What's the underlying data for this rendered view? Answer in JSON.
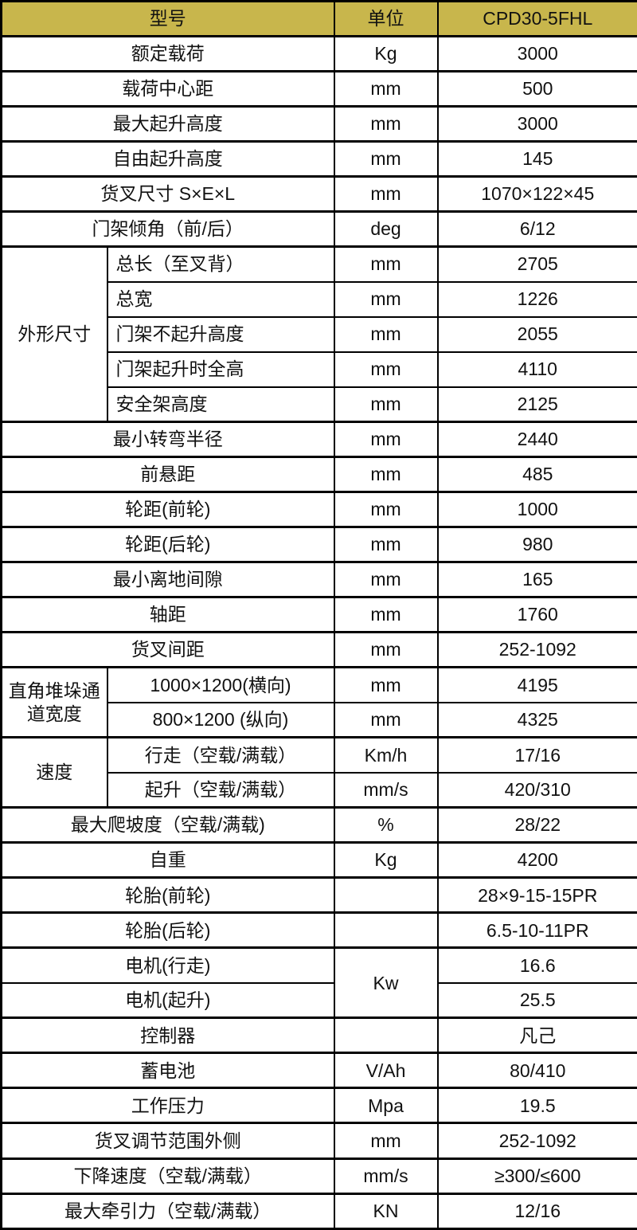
{
  "table": {
    "colors": {
      "header_bg": "#c8b64c",
      "border": "#000000",
      "text": "#111111"
    },
    "header": {
      "model": "型号",
      "unit": "单位",
      "value": "CPD30-5FHL"
    },
    "rows": [
      {
        "label": "额定载荷",
        "unit": "Kg",
        "value": "3000"
      },
      {
        "label": "载荷中心距",
        "unit": "mm",
        "value": "500"
      },
      {
        "label": "最大起升高度",
        "unit": "mm",
        "value": "3000"
      },
      {
        "label": "自由起升高度",
        "unit": "mm",
        "value": "145"
      },
      {
        "label": "货叉尺寸 S×E×L",
        "unit": "mm",
        "value": "1070×122×45"
      },
      {
        "label": "门架倾角（前/后）",
        "unit": "deg",
        "value": "6/12"
      },
      {
        "group": {
          "text": "外形尺寸",
          "rowspan": 5
        },
        "label": "总长（至叉背）",
        "label_align": "left",
        "unit": "mm",
        "value": "2705"
      },
      {
        "label": "总宽",
        "label_align": "left",
        "unit": "mm",
        "value": "1226",
        "minor": true
      },
      {
        "label": "门架不起升高度",
        "label_align": "left",
        "unit": "mm",
        "value": "2055",
        "minor": true
      },
      {
        "label": "门架起升时全高",
        "label_align": "left",
        "unit": "mm",
        "value": "4110",
        "minor": true
      },
      {
        "label": "安全架高度",
        "label_align": "left",
        "unit": "mm",
        "value": "2125",
        "minor": true
      },
      {
        "label": "最小转弯半径",
        "unit": "mm",
        "value": "2440"
      },
      {
        "label": "前悬距",
        "unit": "mm",
        "value": "485"
      },
      {
        "label": "轮距(前轮)",
        "unit": "mm",
        "value": "1000"
      },
      {
        "label": "轮距(后轮)",
        "unit": "mm",
        "value": "980"
      },
      {
        "label": "最小离地间隙",
        "unit": "mm",
        "value": "165"
      },
      {
        "label": "轴距",
        "unit": "mm",
        "value": "1760"
      },
      {
        "label": "货叉间距",
        "unit": "mm",
        "value": "252-1092"
      },
      {
        "group": {
          "text": "直角堆垛通道宽度",
          "rowspan": 2
        },
        "label": "1000×1200(横向)",
        "unit": "mm",
        "value": "4195"
      },
      {
        "label": "800×1200 (纵向)",
        "unit": "mm",
        "value": "4325",
        "minor": true
      },
      {
        "group": {
          "text": "速度",
          "rowspan": 2
        },
        "label": "行走（空载/满载）",
        "unit": "Km/h",
        "value": "17/16"
      },
      {
        "label": "起升（空载/满载）",
        "unit": "mm/s",
        "value": "420/310",
        "minor": true
      },
      {
        "label": "最大爬坡度（空载/满载)",
        "unit": "%",
        "value": "28/22"
      },
      {
        "label": "自重",
        "unit": "Kg",
        "value": "4200"
      },
      {
        "label": "轮胎(前轮)",
        "unit": "",
        "value": "28×9-15-15PR"
      },
      {
        "label": "轮胎(后轮)",
        "unit": "",
        "value": "6.5-10-11PR"
      },
      {
        "label": "电机(行走)",
        "unit": {
          "text": "Kw",
          "rowspan": 2
        },
        "value": "16.6"
      },
      {
        "label": "电机(起升)",
        "unit": null,
        "value": "25.5",
        "minor": true
      },
      {
        "label": "控制器",
        "unit": "",
        "value": "凡己"
      },
      {
        "label": "蓄电池",
        "unit": "V/Ah",
        "value": "80/410"
      },
      {
        "label": "工作压力",
        "unit": "Mpa",
        "value": "19.5"
      },
      {
        "label": "货叉调节范围外侧",
        "unit": "mm",
        "value": "252-1092"
      },
      {
        "label": "下降速度（空载/满载）",
        "unit": "mm/s",
        "value": "≥300/≤600"
      },
      {
        "label": "最大牵引力（空载/满载）",
        "unit": "KN",
        "value": "12/16"
      }
    ]
  }
}
